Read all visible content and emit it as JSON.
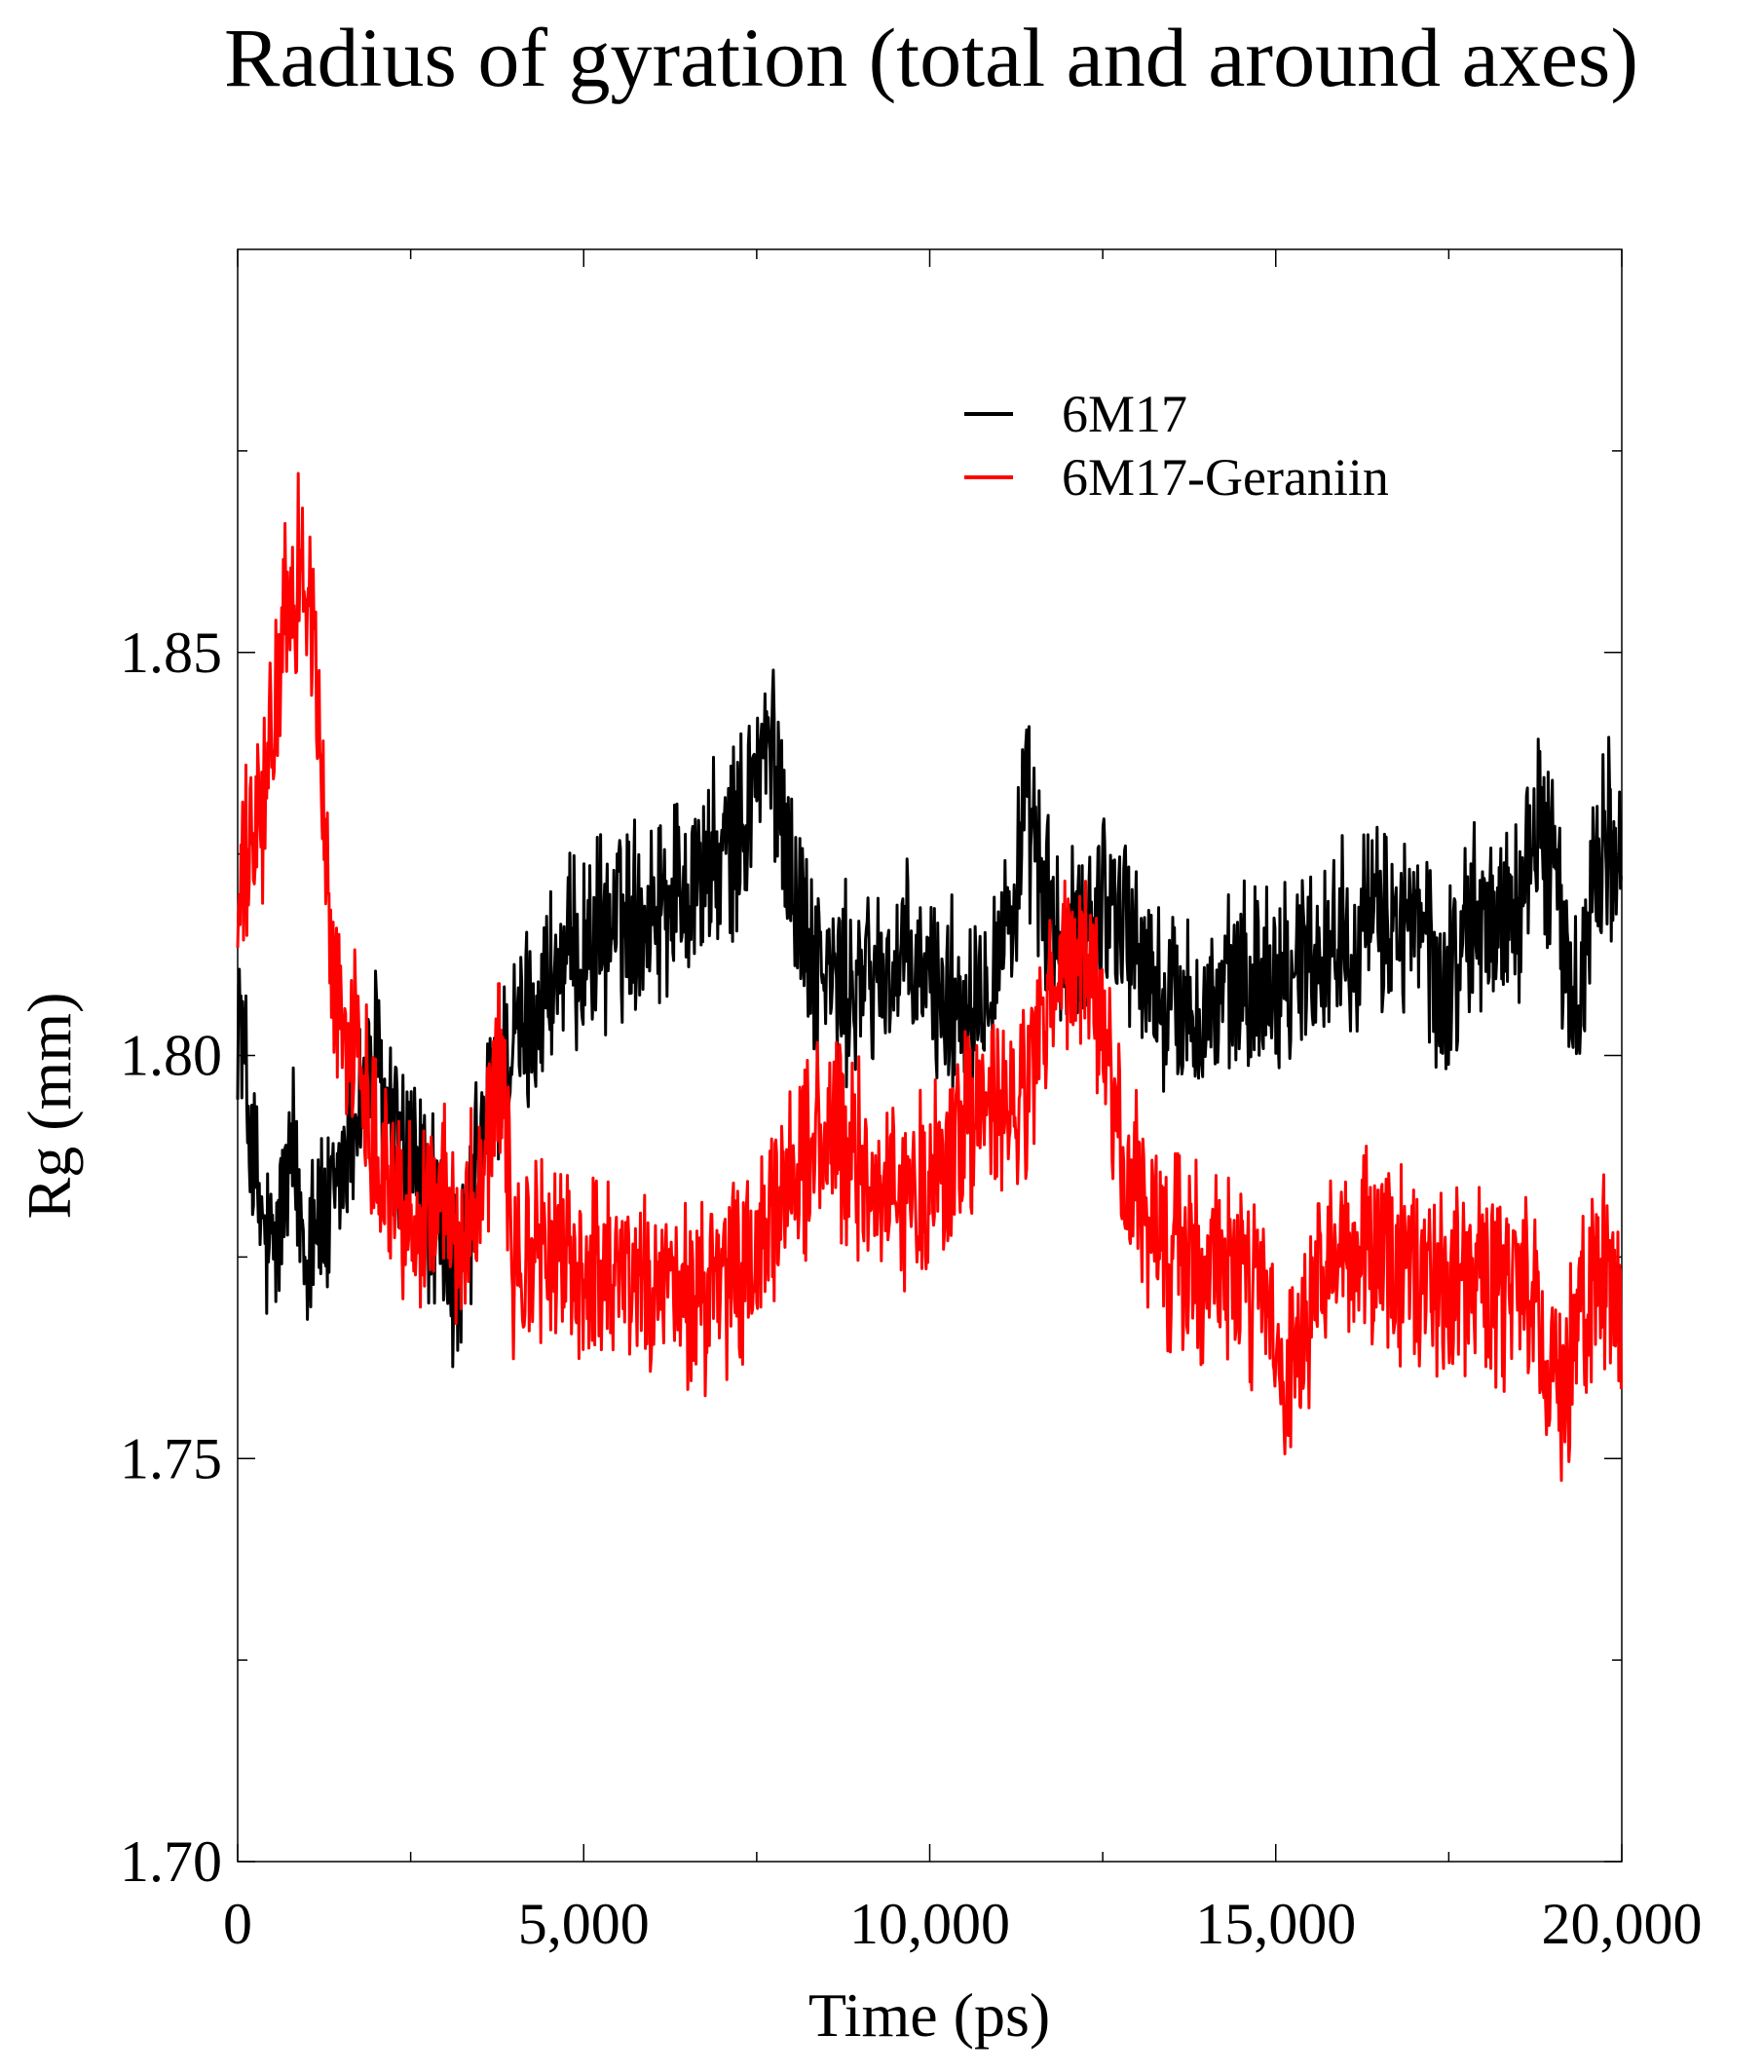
{
  "chart_data": {
    "type": "line",
    "title": "Radius of gyration (total and around axes)",
    "xlabel": "Time (ps)",
    "ylabel": "Rg (mm)",
    "xlim": [
      0,
      20000
    ],
    "ylim": [
      1.7,
      1.9
    ],
    "x_major_ticks": [
      0,
      5000,
      10000,
      15000,
      20000
    ],
    "x_tick_labels": [
      "0",
      "5,000",
      "10,000",
      "15,000",
      "20,000"
    ],
    "x_minor_ticks": [
      2500,
      7500,
      12500,
      17500
    ],
    "y_major_ticks": [
      1.7,
      1.75,
      1.8,
      1.85
    ],
    "y_tick_labels": [
      "1.70",
      "1.75",
      "1.80",
      "1.85"
    ],
    "y_minor_ticks": [
      1.725,
      1.775,
      1.825,
      1.875
    ],
    "grid": false,
    "legend_position": "top-right",
    "series": [
      {
        "name": "6M17",
        "color": "#000000",
        "x": [
          0,
          100,
          200,
          300,
          400,
          500,
          600,
          700,
          800,
          900,
          1000,
          1100,
          1200,
          1300,
          1400,
          1600,
          1800,
          2000,
          2200,
          2400,
          2600,
          2800,
          3000,
          3200,
          3400,
          3600,
          3800,
          4000,
          4300,
          4600,
          5000,
          5400,
          5800,
          6200,
          6600,
          7000,
          7300,
          7500,
          7700,
          7900,
          8100,
          8400,
          8800,
          9200,
          9600,
          10000,
          10400,
          10800,
          11200,
          11400,
          11600,
          11800,
          12000,
          12200,
          12500,
          12800,
          13200,
          13600,
          14000,
          14400,
          14800,
          15200,
          15600,
          16000,
          16400,
          16800,
          17200,
          17400,
          17600,
          17800,
          18200,
          18600,
          18800,
          19000,
          19200,
          19400,
          19600,
          19800,
          20000
        ],
        "y": [
          1.808,
          1.798,
          1.789,
          1.781,
          1.777,
          1.774,
          1.779,
          1.783,
          1.787,
          1.781,
          1.776,
          1.783,
          1.779,
          1.778,
          1.781,
          1.79,
          1.796,
          1.799,
          1.791,
          1.788,
          1.786,
          1.781,
          1.776,
          1.771,
          1.782,
          1.792,
          1.798,
          1.801,
          1.806,
          1.81,
          1.813,
          1.816,
          1.818,
          1.82,
          1.822,
          1.824,
          1.828,
          1.836,
          1.838,
          1.83,
          1.818,
          1.811,
          1.808,
          1.81,
          1.811,
          1.809,
          1.806,
          1.81,
          1.818,
          1.83,
          1.822,
          1.815,
          1.812,
          1.815,
          1.82,
          1.818,
          1.808,
          1.806,
          1.805,
          1.808,
          1.81,
          1.811,
          1.813,
          1.815,
          1.816,
          1.817,
          1.814,
          1.806,
          1.812,
          1.816,
          1.817,
          1.82,
          1.83,
          1.824,
          1.81,
          1.805,
          1.825,
          1.828,
          1.822
        ]
      },
      {
        "name": "6M17-Geraniin",
        "color": "#ff0000",
        "x": [
          0,
          100,
          200,
          300,
          400,
          500,
          600,
          700,
          800,
          900,
          1000,
          1100,
          1200,
          1300,
          1400,
          1600,
          1800,
          2000,
          2200,
          2400,
          2600,
          2800,
          3000,
          3200,
          3400,
          3600,
          3800,
          4000,
          4300,
          4600,
          5000,
          5400,
          5800,
          6200,
          6600,
          7000,
          7300,
          7500,
          7700,
          7900,
          8100,
          8400,
          8800,
          9200,
          9600,
          10000,
          10400,
          10800,
          11200,
          11400,
          11600,
          11800,
          12000,
          12200,
          12500,
          12800,
          13200,
          13600,
          14000,
          14400,
          14800,
          15000,
          15200,
          15600,
          16000,
          16400,
          16800,
          17200,
          17600,
          18000,
          18400,
          18800,
          19000,
          19200,
          19400,
          19600,
          19800,
          20000
        ],
        "y": [
          1.817,
          1.822,
          1.826,
          1.828,
          1.832,
          1.84,
          1.848,
          1.853,
          1.857,
          1.862,
          1.858,
          1.852,
          1.835,
          1.82,
          1.808,
          1.803,
          1.798,
          1.79,
          1.785,
          1.781,
          1.779,
          1.783,
          1.781,
          1.778,
          1.782,
          1.79,
          1.8,
          1.772,
          1.776,
          1.775,
          1.773,
          1.775,
          1.772,
          1.77,
          1.77,
          1.771,
          1.773,
          1.775,
          1.777,
          1.784,
          1.787,
          1.79,
          1.788,
          1.785,
          1.782,
          1.783,
          1.79,
          1.793,
          1.792,
          1.796,
          1.802,
          1.808,
          1.812,
          1.811,
          1.803,
          1.786,
          1.778,
          1.775,
          1.774,
          1.773,
          1.77,
          1.762,
          1.758,
          1.769,
          1.776,
          1.776,
          1.773,
          1.772,
          1.773,
          1.772,
          1.77,
          1.768,
          1.762,
          1.76,
          1.767,
          1.77,
          1.774,
          1.768
        ]
      }
    ]
  }
}
